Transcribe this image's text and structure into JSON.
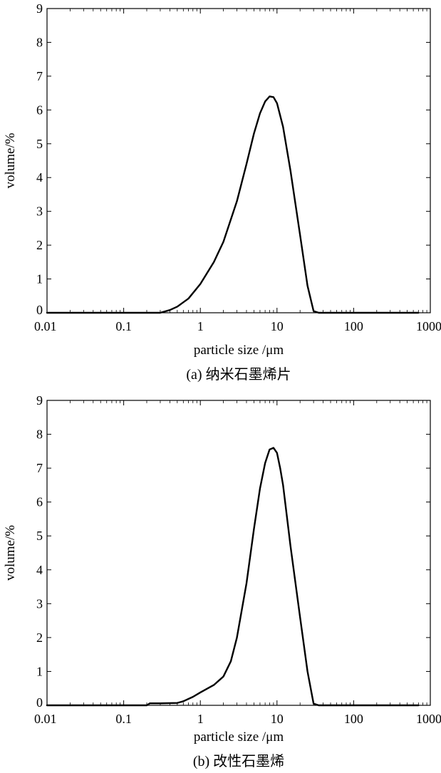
{
  "chart_data": [
    {
      "type": "line",
      "xscale": "log",
      "xlim": [
        0.01,
        1000
      ],
      "ylim": [
        0,
        9
      ],
      "xticks": [
        0.01,
        0.1,
        1,
        10,
        100,
        1000
      ],
      "xtick_labels": [
        "0.01",
        "0.1",
        "1",
        "10",
        "100",
        "1000"
      ],
      "yticks": [
        0,
        1,
        2,
        3,
        4,
        5,
        6,
        7,
        8,
        9
      ],
      "ytick_labels": [
        "0",
        "1",
        "2",
        "3",
        "4",
        "5",
        "6",
        "7",
        "8",
        "9"
      ],
      "xlabel": "particle size /μm",
      "ylabel": "volume/%",
      "caption": "(a) 纳米石墨烯片",
      "grid": false,
      "legend": "none",
      "series": [
        {
          "color": "#000000",
          "x": [
            0.01,
            0.3,
            0.4,
            0.5,
            0.7,
            1,
            1.5,
            2,
            3,
            4,
            5,
            6,
            7,
            8,
            9,
            10,
            12,
            15,
            20,
            25,
            30,
            35,
            50,
            100,
            700
          ],
          "y": [
            0,
            0,
            0.08,
            0.18,
            0.42,
            0.85,
            1.5,
            2.1,
            3.3,
            4.4,
            5.3,
            5.9,
            6.25,
            6.4,
            6.38,
            6.2,
            5.5,
            4.2,
            2.3,
            0.8,
            0.05,
            0,
            0,
            0,
            0
          ]
        }
      ]
    },
    {
      "type": "line",
      "xscale": "log",
      "xlim": [
        0.01,
        1000
      ],
      "ylim": [
        0,
        9
      ],
      "xticks": [
        0.01,
        0.1,
        1,
        10,
        100,
        1000
      ],
      "xtick_labels": [
        "0.01",
        "0.1",
        "1",
        "10",
        "100",
        "1000"
      ],
      "yticks": [
        0,
        1,
        2,
        3,
        4,
        5,
        6,
        7,
        8,
        9
      ],
      "ytick_labels": [
        "0",
        "1",
        "2",
        "3",
        "4",
        "5",
        "6",
        "7",
        "8",
        "9"
      ],
      "xlabel": "particle size /μm",
      "ylabel": "volume/%",
      "caption": "(b) 改性石墨烯",
      "grid": false,
      "legend": "none",
      "series": [
        {
          "color": "#000000",
          "x": [
            0.01,
            0.2,
            0.22,
            0.3,
            0.5,
            0.6,
            0.8,
            1,
            1.5,
            2,
            2.5,
            3,
            4,
            5,
            6,
            7,
            8,
            9,
            10,
            11,
            12,
            15,
            20,
            25,
            30,
            35,
            50,
            100,
            700
          ],
          "y": [
            0,
            0,
            0.06,
            0.06,
            0.07,
            0.12,
            0.25,
            0.38,
            0.6,
            0.85,
            1.3,
            2.0,
            3.6,
            5.2,
            6.4,
            7.15,
            7.55,
            7.6,
            7.45,
            7.0,
            6.5,
            4.7,
            2.6,
            1.0,
            0.05,
            0,
            0,
            0,
            0
          ]
        }
      ]
    }
  ]
}
